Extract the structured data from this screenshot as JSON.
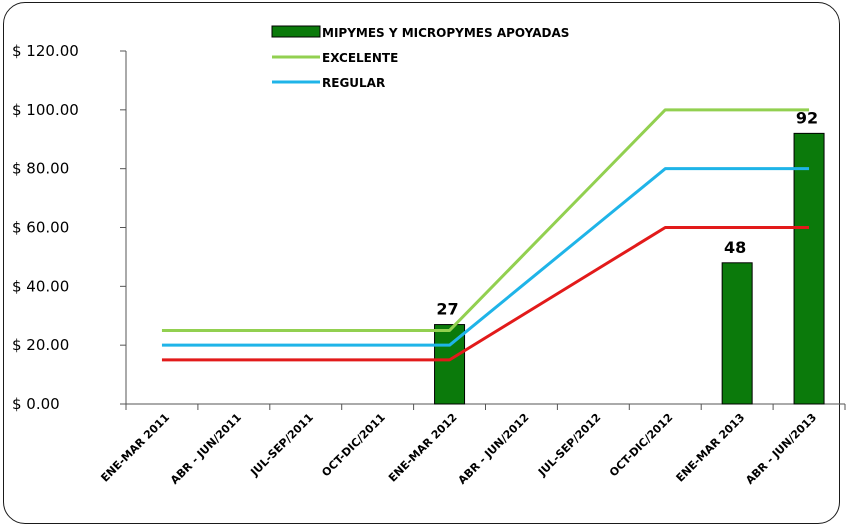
{
  "chart_data": {
    "type": "bar",
    "categories": [
      "ENE-MAR 2011",
      "ABR - JUN/2011",
      "JUL-SEP/2011",
      "OCT-DIC/2011",
      "ENE-MAR 2012",
      "ABR - JUN/2012",
      "JUL-SEP/2012",
      "OCT-DIC/2012",
      "ENE-MAR 2013",
      "ABR - JUN/2013"
    ],
    "series": [
      {
        "name": "MIPYMES Y MICROPYMES APOYADAS",
        "kind": "bar",
        "color": "#0b7a0b",
        "values": [
          null,
          null,
          null,
          null,
          27,
          null,
          null,
          null,
          48,
          92
        ],
        "labels": [
          "",
          "",
          "",
          "",
          "27",
          "",
          "",
          "",
          "48",
          "92"
        ]
      },
      {
        "name": "EXCELENTE",
        "kind": "line",
        "color": "#92d050",
        "values": [
          25,
          25,
          25,
          25,
          25,
          50,
          75,
          100,
          100,
          100
        ]
      },
      {
        "name": "REGULAR",
        "kind": "line",
        "color": "#1fb4e8",
        "values": [
          20,
          20,
          20,
          20,
          20,
          40,
          60,
          80,
          80,
          80
        ]
      },
      {
        "name": "",
        "kind": "line",
        "color": "#e21a1a",
        "values": [
          15,
          15,
          15,
          15,
          15,
          30,
          45,
          60,
          60,
          60
        ]
      }
    ],
    "y_ticks": [
      "$ 0.00",
      "$ 20.00",
      "$ 40.00",
      "$ 60.00",
      "$ 80.00",
      "$ 100.00",
      "$ 120.00"
    ],
    "ylim": [
      0,
      120
    ],
    "grid": false,
    "legend_position": "top-center"
  }
}
